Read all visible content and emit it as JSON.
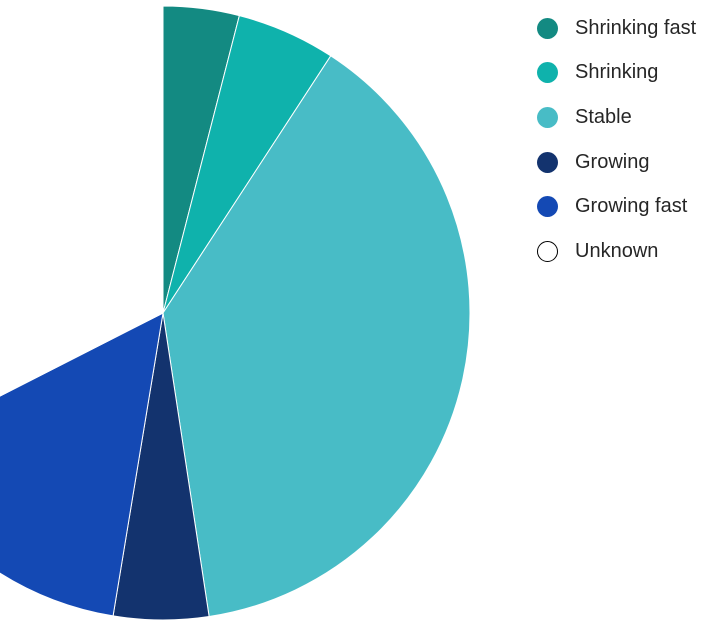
{
  "chart_data": {
    "type": "pie",
    "title": "",
    "start_angle_deg": 0,
    "slices": [
      {
        "label": "Shrinking fast",
        "value": 4.0,
        "color": "#138a82"
      },
      {
        "label": "Shrinking",
        "value": 5.2,
        "color": "#0fb2ac"
      },
      {
        "label": "Stable",
        "value": 38.4,
        "color": "#48bcc6"
      },
      {
        "label": "Growing",
        "value": 5.0,
        "color": "#13336e"
      },
      {
        "label": "Growing fast",
        "value": 14.9,
        "color": "#1449b4"
      },
      {
        "label": "Unknown",
        "value": 32.5,
        "color": "#ffffff",
        "outline": "#000000"
      }
    ],
    "legend_position": "top-right"
  }
}
